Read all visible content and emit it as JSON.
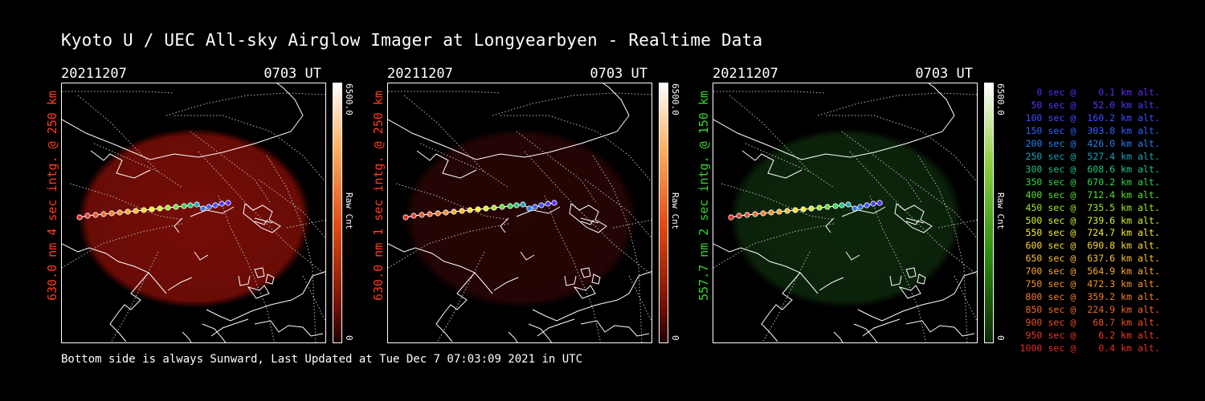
{
  "title": "Kyoto U / UEC All-sky Airglow Imager at Longyearbyen - Realtime Data",
  "footer": "Bottom side is always Sunward, Last Updated at Tue Dec  7 07:03:09 2021 in UTC",
  "panels": [
    {
      "date": "20211207",
      "time": "0703 UT",
      "label": "630.0 nm 4 sec intg. @ 250 km",
      "label_color": "#ff3b1f",
      "max": "6500.0",
      "min": "0",
      "unit": "Raw Cnt",
      "image_color": "#8a0f08",
      "image_opacity": 0.85,
      "bar": "red"
    },
    {
      "date": "20211207",
      "time": "0703 UT",
      "label": "630.0 nm 1 sec intg. @ 250 km",
      "label_color": "#ff3b1f",
      "max": "6500.0",
      "min": "0",
      "unit": "Raw Cnt",
      "image_color": "#2a0605",
      "image_opacity": 0.9,
      "bar": "red"
    },
    {
      "date": "20211207",
      "time": "0703 UT",
      "label": "557.7 nm 2 sec intg. @ 150 km",
      "label_color": "#39d331",
      "max": "6500.0",
      "min": "0",
      "unit": "Raw Cnt",
      "image_color": "#0d2a0c",
      "image_opacity": 0.9,
      "bar": "green"
    }
  ],
  "legend": [
    {
      "text": "   0 sec @    0.1 km alt.",
      "color": "#5a2bff"
    },
    {
      "text": "  50 sec @   52.0 km alt.",
      "color": "#4a3cff"
    },
    {
      "text": " 100 sec @  160.2 km alt.",
      "color": "#3c4cff"
    },
    {
      "text": " 150 sec @  303.8 km alt.",
      "color": "#2e60ff"
    },
    {
      "text": " 200 sec @  426.0 km alt.",
      "color": "#2a7cf0"
    },
    {
      "text": " 250 sec @  527.4 km alt.",
      "color": "#21a3b5"
    },
    {
      "text": " 300 sec @  608.6 km alt.",
      "color": "#21c27e"
    },
    {
      "text": " 350 sec @  670.2 km alt.",
      "color": "#2ed64a"
    },
    {
      "text": " 400 sec @  712.4 km alt.",
      "color": "#5ce030"
    },
    {
      "text": " 450 sec @  735.5 km alt.",
      "color": "#9fe82a"
    },
    {
      "text": " 500 sec @  739.6 km alt.",
      "color": "#d6ef2a"
    },
    {
      "text": " 550 sec @  724.7 km alt.",
      "color": "#f5f030"
    },
    {
      "text": " 600 sec @  690.8 km alt.",
      "color": "#f8d832"
    },
    {
      "text": " 650 sec @  637.6 km alt.",
      "color": "#f8c030"
    },
    {
      "text": " 700 sec @  564.9 km alt.",
      "color": "#f7a82e"
    },
    {
      "text": " 750 sec @  472.3 km alt.",
      "color": "#f6922d"
    },
    {
      "text": " 800 sec @  359.2 km alt.",
      "color": "#f47b2c"
    },
    {
      "text": " 850 sec @  224.9 km alt.",
      "color": "#f0662b"
    },
    {
      "text": " 900 sec @   68.7 km alt.",
      "color": "#ec4f29"
    },
    {
      "text": " 950 sec @    6.2 km alt.",
      "color": "#e83a27"
    },
    {
      "text": "1000 sec @    0.4 km alt.",
      "color": "#e42a25"
    }
  ]
}
